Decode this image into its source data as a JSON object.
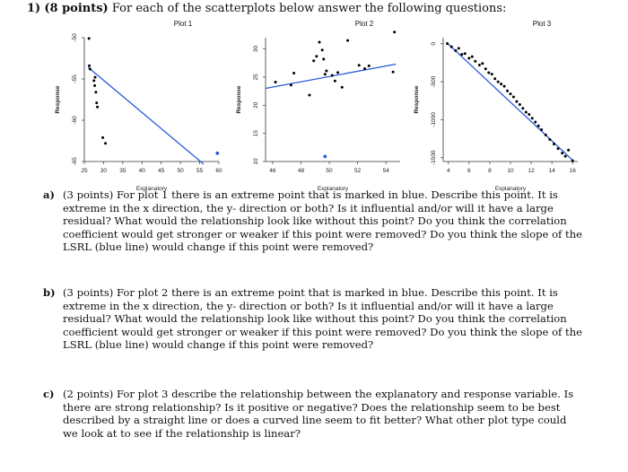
{
  "question": {
    "number": "1)",
    "points": "(8 points)",
    "text": "For each of the scatterplots below answer the following questions:"
  },
  "chart_data": [
    {
      "type": "scatter",
      "title": "Plot 1",
      "xlabel": "Explanatory",
      "ylabel": "Response",
      "xlim": [
        25,
        60
      ],
      "ylim": [
        -65,
        -50
      ],
      "xticks": [
        "25",
        "30",
        "35",
        "40",
        "45",
        "50",
        "55",
        "60"
      ],
      "yticks": [
        "-50",
        "-55",
        "-60",
        "-65"
      ],
      "points": [
        {
          "x": 26.2,
          "y": -50.1
        },
        {
          "x": 26.3,
          "y": -53.4
        },
        {
          "x": 26.5,
          "y": -53.8
        },
        {
          "x": 27.5,
          "y": -55.2
        },
        {
          "x": 27.7,
          "y": -55.8
        },
        {
          "x": 27.8,
          "y": -54.8
        },
        {
          "x": 28.0,
          "y": -56.6
        },
        {
          "x": 28.2,
          "y": -57.9
        },
        {
          "x": 28.4,
          "y": -58.4
        },
        {
          "x": 29.8,
          "y": -62.1
        },
        {
          "x": 30.5,
          "y": -62.8
        }
      ],
      "outlier": {
        "x": 59.6,
        "y": -64.0,
        "color": "#2a5bd7"
      },
      "lsrl": {
        "x1": 26,
        "y1": -53.6,
        "x2": 56,
        "y2": -65.3,
        "color": "#2a5bd7"
      }
    },
    {
      "type": "scatter",
      "title": "Plot 2",
      "xlabel": "Explanatory",
      "ylabel": "Response",
      "xlim": [
        45.5,
        55
      ],
      "ylim": [
        10,
        32
      ],
      "xticks": [
        "46",
        "48",
        "50",
        "52",
        "54"
      ],
      "yticks": [
        "10",
        "15",
        "20",
        "25",
        "30"
      ],
      "points": [
        {
          "x": 46.2,
          "y": 24.1
        },
        {
          "x": 47.3,
          "y": 23.6
        },
        {
          "x": 47.5,
          "y": 25.7
        },
        {
          "x": 48.6,
          "y": 21.8
        },
        {
          "x": 48.9,
          "y": 27.9
        },
        {
          "x": 49.1,
          "y": 28.7
        },
        {
          "x": 49.3,
          "y": 31.2
        },
        {
          "x": 49.5,
          "y": 29.8
        },
        {
          "x": 49.6,
          "y": 28.2
        },
        {
          "x": 49.7,
          "y": 25.5
        },
        {
          "x": 49.8,
          "y": 26.1
        },
        {
          "x": 50.2,
          "y": 25.3
        },
        {
          "x": 50.4,
          "y": 24.3
        },
        {
          "x": 50.6,
          "y": 25.8
        },
        {
          "x": 50.9,
          "y": 23.2
        },
        {
          "x": 51.3,
          "y": 31.5
        },
        {
          "x": 52.1,
          "y": 27.1
        },
        {
          "x": 52.5,
          "y": 26.5
        },
        {
          "x": 52.8,
          "y": 27.0
        },
        {
          "x": 54.6,
          "y": 33.0
        },
        {
          "x": 54.5,
          "y": 25.9
        }
      ],
      "outlier": {
        "x": 49.7,
        "y": 10.9,
        "color": "#2a5bd7"
      },
      "lsrl": {
        "x1": 45.5,
        "y1": 23.0,
        "x2": 54.7,
        "y2": 27.3,
        "color": "#2a5bd7"
      }
    },
    {
      "type": "scatter",
      "title": "Plot 3",
      "xlabel": "Explanatory",
      "ylabel": "Response",
      "xlim": [
        3.5,
        16.5
      ],
      "ylim": [
        -1550,
        80
      ],
      "xticks": [
        "4",
        "6",
        "8",
        "10",
        "12",
        "14",
        "16"
      ],
      "yticks": [
        "0",
        "-500",
        "-1000",
        "-1500"
      ],
      "points": [
        {
          "x": 3.9,
          "y": 2
        },
        {
          "x": 4.3,
          "y": -40
        },
        {
          "x": 4.7,
          "y": -90
        },
        {
          "x": 5.0,
          "y": -60
        },
        {
          "x": 5.3,
          "y": -140
        },
        {
          "x": 5.6,
          "y": -130
        },
        {
          "x": 6.0,
          "y": -190
        },
        {
          "x": 6.3,
          "y": -170
        },
        {
          "x": 6.6,
          "y": -230
        },
        {
          "x": 7.0,
          "y": -280
        },
        {
          "x": 7.3,
          "y": -260
        },
        {
          "x": 7.6,
          "y": -330
        },
        {
          "x": 7.9,
          "y": -380
        },
        {
          "x": 8.2,
          "y": -400
        },
        {
          "x": 8.5,
          "y": -460
        },
        {
          "x": 8.8,
          "y": -500
        },
        {
          "x": 9.1,
          "y": -530
        },
        {
          "x": 9.4,
          "y": -560
        },
        {
          "x": 9.7,
          "y": -620
        },
        {
          "x": 10.0,
          "y": -660
        },
        {
          "x": 10.3,
          "y": -700
        },
        {
          "x": 10.6,
          "y": -760
        },
        {
          "x": 10.9,
          "y": -800
        },
        {
          "x": 11.2,
          "y": -850
        },
        {
          "x": 11.5,
          "y": -900
        },
        {
          "x": 11.8,
          "y": -930
        },
        {
          "x": 12.1,
          "y": -980
        },
        {
          "x": 12.4,
          "y": -1030
        },
        {
          "x": 12.7,
          "y": -1080
        },
        {
          "x": 13.0,
          "y": -1130
        },
        {
          "x": 13.4,
          "y": -1200
        },
        {
          "x": 13.8,
          "y": -1260
        },
        {
          "x": 14.2,
          "y": -1320
        },
        {
          "x": 14.6,
          "y": -1380
        },
        {
          "x": 15.0,
          "y": -1440
        },
        {
          "x": 15.3,
          "y": -1480
        },
        {
          "x": 15.6,
          "y": -1400
        },
        {
          "x": 16.0,
          "y": -1540
        }
      ],
      "lsrl": {
        "x1": 3.8,
        "y1": 20,
        "x2": 16.1,
        "y2": -1545,
        "color": "#2a5bd7"
      }
    }
  ],
  "parts": [
    {
      "label": "a)",
      "points": "(3 points)",
      "text": "For plot 1 there is an extreme point that is marked in blue. Describe this point. It is extreme in the x direction, the y- direction or both? Is it influential and/or will it have a large residual? What would the relationship look like without this point? Do you think the correlation coefficient would get stronger or weaker if this point were removed? Do you think the slope of the LSRL (blue line) would change if this point were removed?"
    },
    {
      "label": "b)",
      "points": "(3 points)",
      "text": "For plot 2 there is an extreme point that is marked in blue. Describe this point. It is extreme in the x direction, the y- direction or both? Is it influential and/or will it have a large residual? What would the relationship look like without this point? Do you think the correlation coefficient would get stronger or weaker if this point were removed? Do you think the slope of the LSRL (blue line) would change if this point were removed?"
    },
    {
      "label": "c)",
      "points": "(2 points)",
      "text": "For plot 3 describe the relationship between the explanatory and response variable. Is there are strong relationship? Is it positive or negative? Does the relationship seem to be best described by a straight line or does a curved line seem to fit better? What other plot type could we look at to see if the relationship is linear?"
    }
  ]
}
